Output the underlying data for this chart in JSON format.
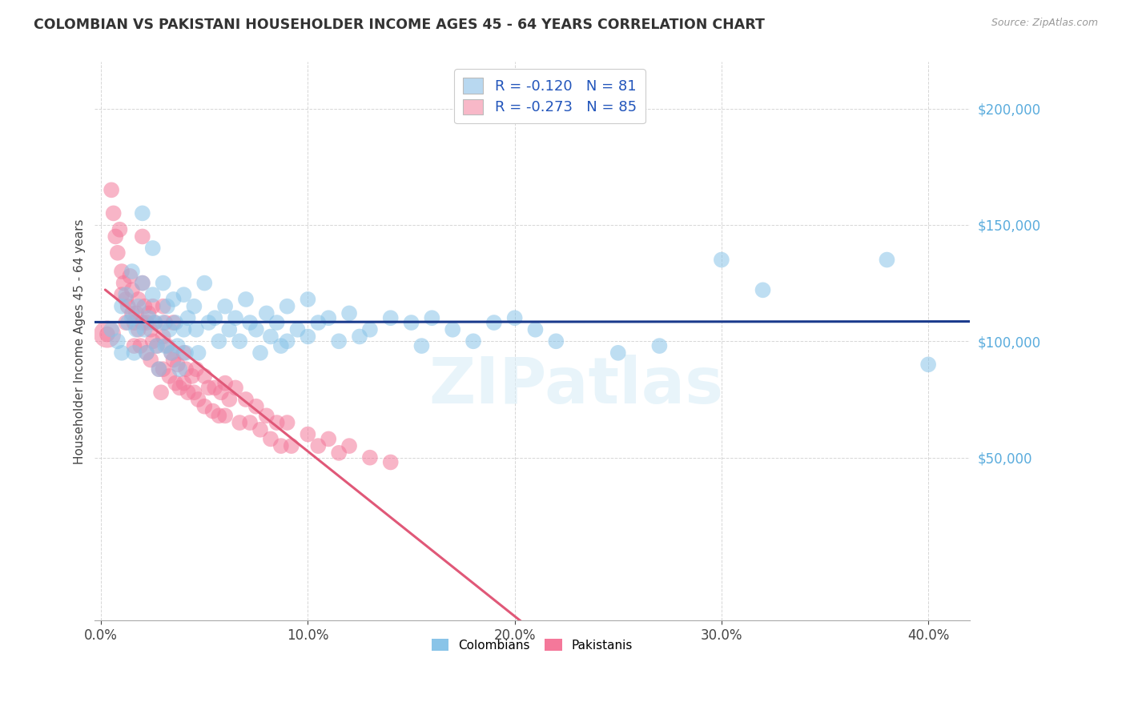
{
  "title": "COLOMBIAN VS PAKISTANI HOUSEHOLDER INCOME AGES 45 - 64 YEARS CORRELATION CHART",
  "source": "Source: ZipAtlas.com",
  "ylabel": "Householder Income Ages 45 - 64 years",
  "xlabel_ticks": [
    "0.0%",
    "10.0%",
    "20.0%",
    "30.0%",
    "40.0%"
  ],
  "xlabel_vals": [
    0.0,
    0.1,
    0.2,
    0.3,
    0.4
  ],
  "ytick_labels": [
    "$50,000",
    "$100,000",
    "$150,000",
    "$200,000"
  ],
  "ytick_vals": [
    50000,
    100000,
    150000,
    200000
  ],
  "xlim": [
    -0.003,
    0.42
  ],
  "ylim": [
    -20000,
    220000
  ],
  "watermark": "ZIPatlas",
  "colombian_color": "#89c4e8",
  "pakistani_color": "#f4789a",
  "colombian_line_color": "#1a3a8c",
  "pakistani_line_solid_color": "#e05878",
  "pakistani_line_dash_color": "#f0a0b8",
  "legend_box1_color": "#b8d8f0",
  "legend_box2_color": "#f8b8c8",
  "legend_r1": "-0.120",
  "legend_n1": "81",
  "legend_r2": "-0.273",
  "legend_n2": "85",
  "colombian_x": [
    0.005,
    0.008,
    0.01,
    0.01,
    0.012,
    0.013,
    0.015,
    0.015,
    0.016,
    0.017,
    0.018,
    0.02,
    0.02,
    0.021,
    0.022,
    0.023,
    0.025,
    0.025,
    0.026,
    0.027,
    0.028,
    0.03,
    0.03,
    0.031,
    0.032,
    0.033,
    0.034,
    0.035,
    0.036,
    0.037,
    0.038,
    0.04,
    0.04,
    0.041,
    0.042,
    0.045,
    0.046,
    0.047,
    0.05,
    0.052,
    0.055,
    0.057,
    0.06,
    0.062,
    0.065,
    0.067,
    0.07,
    0.072,
    0.075,
    0.077,
    0.08,
    0.082,
    0.085,
    0.087,
    0.09,
    0.09,
    0.095,
    0.1,
    0.1,
    0.105,
    0.11,
    0.115,
    0.12,
    0.125,
    0.13,
    0.14,
    0.15,
    0.155,
    0.16,
    0.17,
    0.18,
    0.19,
    0.2,
    0.21,
    0.22,
    0.25,
    0.27,
    0.3,
    0.32,
    0.38,
    0.4
  ],
  "colombian_y": [
    105000,
    100000,
    115000,
    95000,
    120000,
    108000,
    130000,
    110000,
    95000,
    105000,
    115000,
    155000,
    125000,
    105000,
    95000,
    110000,
    140000,
    120000,
    108000,
    98000,
    88000,
    125000,
    108000,
    98000,
    115000,
    105000,
    95000,
    118000,
    108000,
    98000,
    88000,
    120000,
    105000,
    95000,
    110000,
    115000,
    105000,
    95000,
    125000,
    108000,
    110000,
    100000,
    115000,
    105000,
    110000,
    100000,
    118000,
    108000,
    105000,
    95000,
    112000,
    102000,
    108000,
    98000,
    115000,
    100000,
    105000,
    118000,
    102000,
    108000,
    110000,
    100000,
    112000,
    102000,
    105000,
    110000,
    108000,
    98000,
    110000,
    105000,
    100000,
    108000,
    110000,
    105000,
    100000,
    95000,
    98000,
    135000,
    122000,
    135000,
    90000
  ],
  "pakistani_x": [
    0.003,
    0.005,
    0.006,
    0.007,
    0.008,
    0.009,
    0.01,
    0.01,
    0.011,
    0.012,
    0.012,
    0.013,
    0.014,
    0.015,
    0.015,
    0.016,
    0.016,
    0.017,
    0.018,
    0.018,
    0.019,
    0.02,
    0.02,
    0.02,
    0.021,
    0.022,
    0.022,
    0.023,
    0.024,
    0.024,
    0.025,
    0.025,
    0.026,
    0.027,
    0.028,
    0.029,
    0.03,
    0.03,
    0.03,
    0.031,
    0.032,
    0.033,
    0.034,
    0.035,
    0.035,
    0.036,
    0.037,
    0.038,
    0.04,
    0.04,
    0.041,
    0.042,
    0.044,
    0.045,
    0.046,
    0.047,
    0.05,
    0.05,
    0.052,
    0.054,
    0.055,
    0.057,
    0.058,
    0.06,
    0.06,
    0.062,
    0.065,
    0.067,
    0.07,
    0.072,
    0.075,
    0.077,
    0.08,
    0.082,
    0.085,
    0.087,
    0.09,
    0.092,
    0.1,
    0.105,
    0.11,
    0.115,
    0.12,
    0.13,
    0.14
  ],
  "pakistani_y": [
    103000,
    165000,
    155000,
    145000,
    138000,
    148000,
    130000,
    120000,
    125000,
    118000,
    108000,
    115000,
    128000,
    122000,
    112000,
    108000,
    98000,
    112000,
    118000,
    105000,
    98000,
    145000,
    125000,
    108000,
    115000,
    108000,
    95000,
    112000,
    105000,
    92000,
    115000,
    100000,
    108000,
    98000,
    88000,
    78000,
    115000,
    102000,
    88000,
    108000,
    98000,
    85000,
    95000,
    108000,
    92000,
    82000,
    90000,
    80000,
    95000,
    82000,
    88000,
    78000,
    85000,
    78000,
    88000,
    75000,
    85000,
    72000,
    80000,
    70000,
    80000,
    68000,
    78000,
    82000,
    68000,
    75000,
    80000,
    65000,
    75000,
    65000,
    72000,
    62000,
    68000,
    58000,
    65000,
    55000,
    65000,
    55000,
    60000,
    55000,
    58000,
    52000,
    55000,
    50000,
    48000
  ]
}
